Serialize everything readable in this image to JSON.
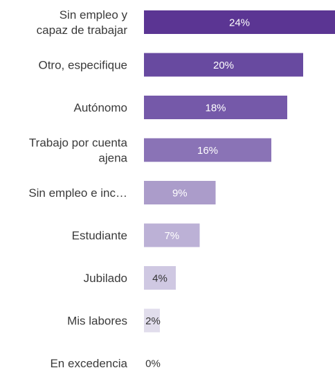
{
  "chart_data": {
    "type": "bar",
    "orientation": "horizontal",
    "categories": [
      [
        "Sin empleo y",
        "capaz de trabajar"
      ],
      [
        "Otro, especifique"
      ],
      [
        "Autónomo"
      ],
      [
        "Trabajo por cuenta",
        "ajena"
      ],
      [
        "Sin empleo e inc…"
      ],
      [
        "Estudiante"
      ],
      [
        "Jubilado"
      ],
      [
        "Mis labores"
      ],
      [
        "En excedencia"
      ]
    ],
    "values": [
      24,
      20,
      18,
      16,
      9,
      7,
      4,
      2,
      0
    ],
    "value_labels": [
      "24%",
      "20%",
      "18%",
      "16%",
      "9%",
      "7%",
      "4%",
      "2%",
      "0%"
    ],
    "value_unit": "%",
    "xlim": [
      0,
      24
    ],
    "grid": false,
    "legend": "none",
    "colors": [
      "#5b3593",
      "#684aa0",
      "#7559a9",
      "#8a73b6",
      "#ab9cca",
      "#bcb1d6",
      "#cfc8e2",
      "#e1ddec",
      "#eeebf4"
    ],
    "label_text_color_dark": "#333333",
    "label_text_color_light": "#ffffff"
  }
}
